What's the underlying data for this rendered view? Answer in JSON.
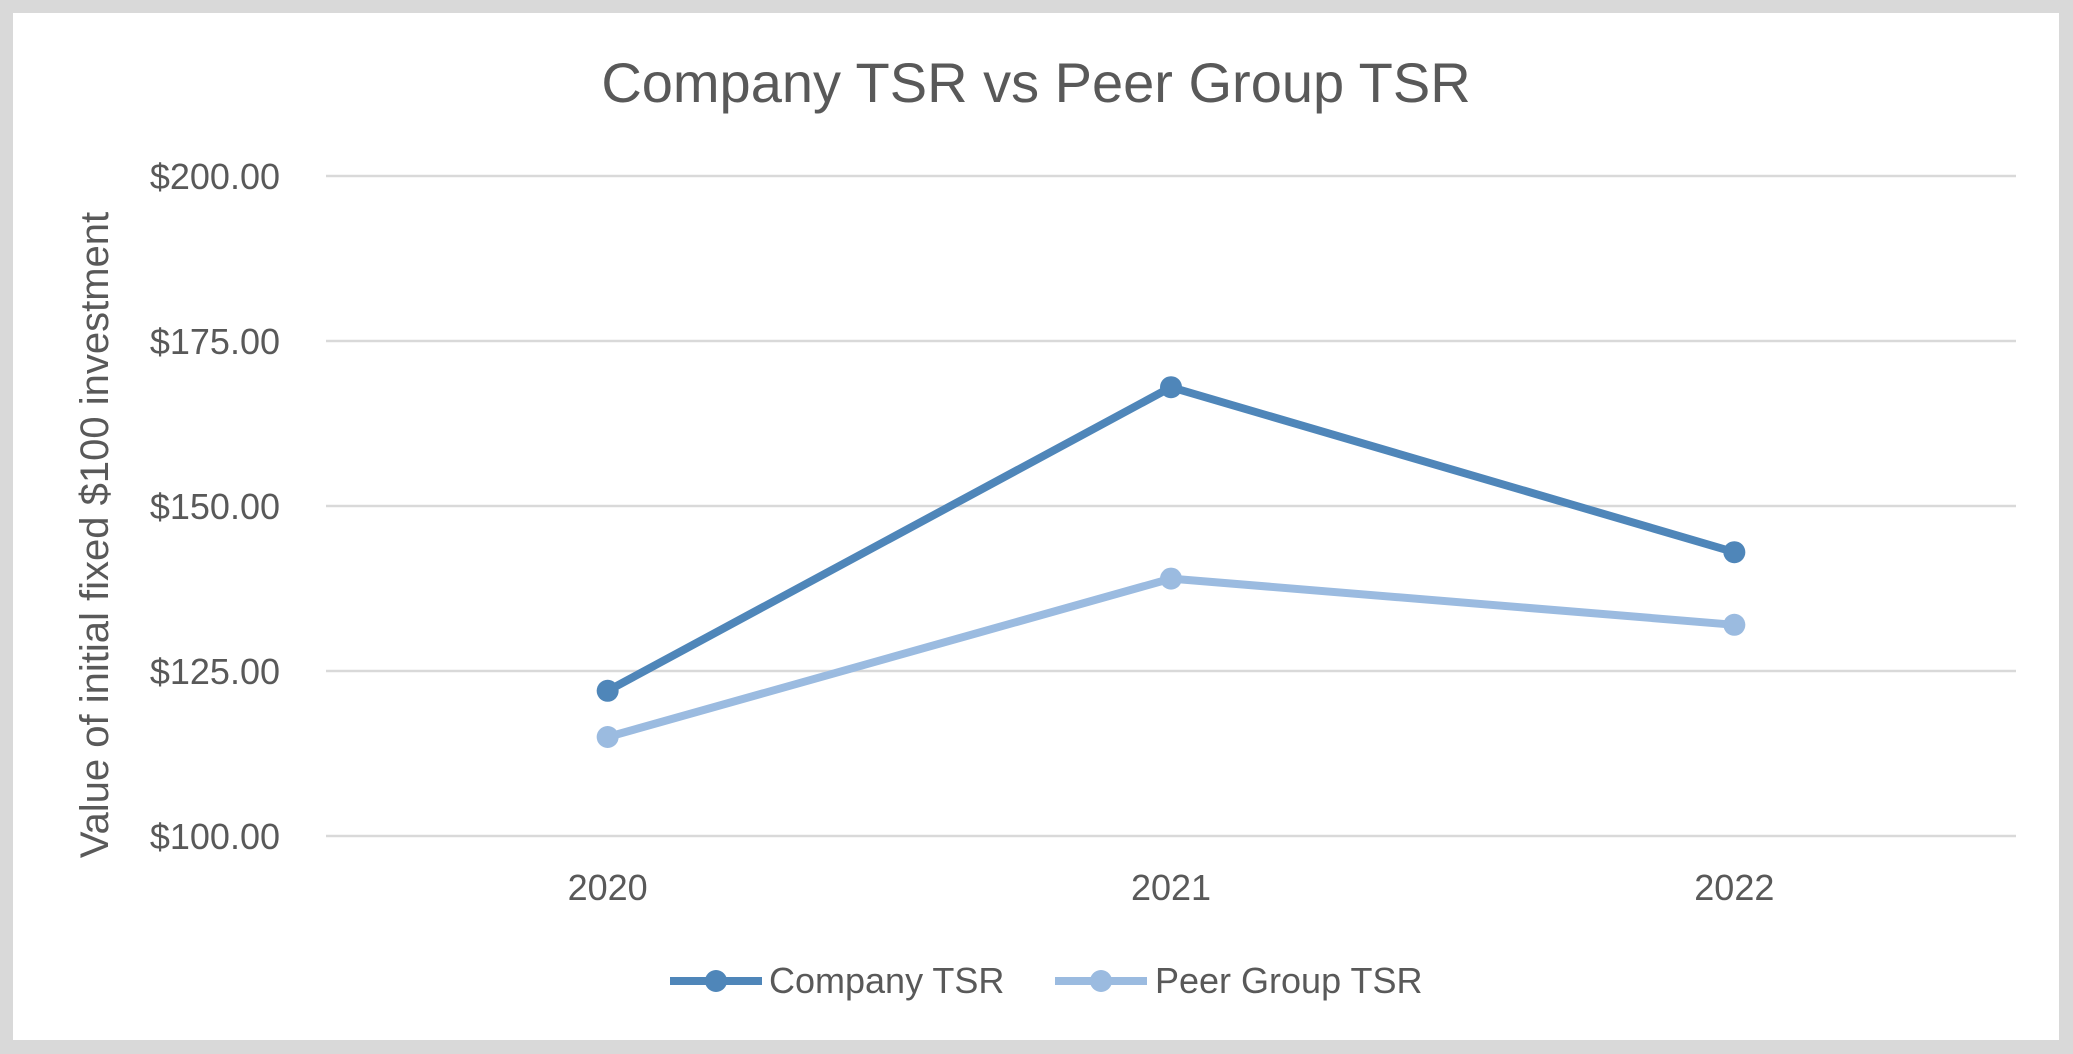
{
  "chart_data": {
    "type": "line",
    "title": "Company TSR vs Peer Group TSR",
    "xlabel": "",
    "ylabel": "Value of initial fixed $100 investment",
    "categories": [
      "2020",
      "2021",
      "2022"
    ],
    "y_tick_labels": [
      "$100.00",
      "$125.00",
      "$150.00",
      "$175.00",
      "$200.00"
    ],
    "y_ticks": [
      100,
      125,
      150,
      175,
      200
    ],
    "ylim": [
      100,
      200
    ],
    "grid": true,
    "legend_position": "bottom",
    "series": [
      {
        "name": "Company TSR",
        "values": [
          122,
          168,
          143
        ],
        "color": "#4f86b9"
      },
      {
        "name": "Peer Group TSR",
        "values": [
          115,
          139,
          132
        ],
        "color": "#9bbbe0"
      }
    ]
  }
}
